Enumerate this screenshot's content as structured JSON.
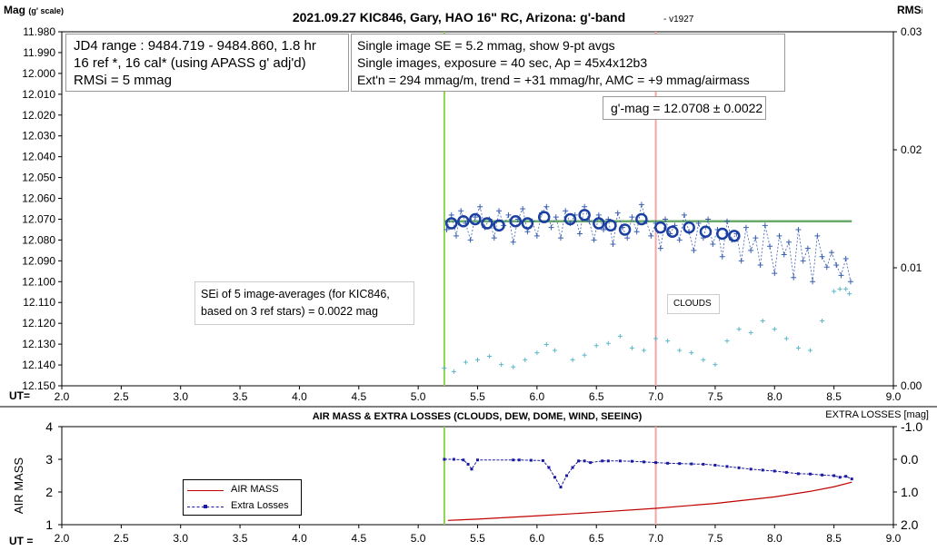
{
  "chart_data": [
    {
      "type": "scatter",
      "title": "2021.09.27 KIC846, Gary, HAO 16\" RC, Arizona: g'-band",
      "version": "- v1927",
      "ylabel": "Mag",
      "ylabel_scale": "(g' scale)",
      "y2label": "RMS",
      "y2label_sub": "i",
      "xlabel": "UT=",
      "xlim": [
        2.0,
        9.0
      ],
      "ylim": [
        11.98,
        12.15
      ],
      "y2lim": [
        0.0,
        0.03
      ],
      "x_ticks": [
        "2.0",
        "2.5",
        "3.0",
        "3.5",
        "4.0",
        "4.5",
        "5.0",
        "5.5",
        "6.0",
        "6.5",
        "7.0",
        "7.5",
        "8.0",
        "8.5",
        "9.0"
      ],
      "y_ticks": [
        "11.980",
        "11.990",
        "12.000",
        "12.010",
        "12.020",
        "12.030",
        "12.040",
        "12.050",
        "12.060",
        "12.070",
        "12.080",
        "12.090",
        "12.100",
        "12.110",
        "12.120",
        "12.130",
        "12.140",
        "12.150"
      ],
      "y2_ticks": [
        "0.03",
        "0.02",
        "0.01",
        "0.00"
      ],
      "vlines": [
        {
          "x": 5.22,
          "color": "#8fd14f"
        },
        {
          "x": 7.0,
          "color": "#f4a6a6"
        }
      ],
      "fit_line": {
        "x": [
          5.22,
          8.65
        ],
        "y": [
          12.071,
          12.071
        ],
        "color": "#6aaa6a"
      },
      "series": [
        {
          "name": "9-pt avgs",
          "style": "circle",
          "color": "#1a3fa0",
          "x": [
            5.28,
            5.38,
            5.48,
            5.58,
            5.68,
            5.82,
            5.92,
            6.06,
            6.28,
            6.4,
            6.52,
            6.62,
            6.74,
            6.88,
            7.04,
            7.14,
            7.28,
            7.42,
            7.56,
            7.66
          ],
          "y": [
            12.072,
            12.071,
            12.07,
            12.072,
            12.073,
            12.071,
            12.072,
            12.069,
            12.07,
            12.068,
            12.072,
            12.073,
            12.075,
            12.07,
            12.074,
            12.076,
            12.074,
            12.076,
            12.077,
            12.078
          ]
        },
        {
          "name": "RMSi (right axis)",
          "style": "small-cross",
          "color": "#5ab8c8",
          "x": [
            5.22,
            5.3,
            5.4,
            5.5,
            5.6,
            5.7,
            5.8,
            5.9,
            6.0,
            6.08,
            6.15,
            6.3,
            6.4,
            6.5,
            6.6,
            6.7,
            6.8,
            6.9,
            7.0,
            7.1,
            7.2,
            7.3,
            7.4,
            7.5,
            7.6,
            7.7,
            7.8,
            7.9,
            8.0,
            8.1,
            8.2,
            8.3,
            8.4,
            8.5,
            8.55,
            8.6,
            8.63
          ],
          "y": [
            0.0015,
            0.0012,
            0.002,
            0.0022,
            0.0025,
            0.0018,
            0.0016,
            0.0022,
            0.0028,
            0.0035,
            0.003,
            0.0022,
            0.0026,
            0.0034,
            0.0036,
            0.0042,
            0.0032,
            0.003,
            0.004,
            0.0038,
            0.003,
            0.0028,
            0.0022,
            0.0018,
            0.0038,
            0.0048,
            0.0045,
            0.0055,
            0.0048,
            0.004,
            0.0032,
            0.003,
            0.0055,
            0.008,
            0.0082,
            0.0082,
            0.0078
          ]
        },
        {
          "name": "Single images",
          "style": "cross-dotted",
          "color": "#3a5fb0",
          "x": [
            5.24,
            5.28,
            5.32,
            5.36,
            5.4,
            5.44,
            5.48,
            5.52,
            5.56,
            5.6,
            5.64,
            5.68,
            5.72,
            5.76,
            5.8,
            5.84,
            5.88,
            5.92,
            5.96,
            6.0,
            6.04,
            6.08,
            6.12,
            6.16,
            6.2,
            6.24,
            6.28,
            6.32,
            6.36,
            6.4,
            6.44,
            6.48,
            6.52,
            6.56,
            6.6,
            6.64,
            6.68,
            6.72,
            6.76,
            6.8,
            6.84,
            6.88,
            6.92,
            6.96,
            7.0,
            7.04,
            7.08,
            7.12,
            7.16,
            7.2,
            7.24,
            7.28,
            7.32,
            7.36,
            7.4,
            7.44,
            7.48,
            7.52,
            7.56,
            7.6,
            7.64,
            7.68,
            7.72,
            7.76,
            7.8,
            7.84,
            7.88,
            7.92,
            7.96,
            8.0,
            8.04,
            8.08,
            8.12,
            8.16,
            8.2,
            8.24,
            8.28,
            8.32,
            8.36,
            8.4,
            8.44,
            8.48,
            8.52,
            8.56,
            8.6,
            8.64
          ],
          "y": [
            12.075,
            12.068,
            12.078,
            12.066,
            12.072,
            12.08,
            12.069,
            12.064,
            12.074,
            12.07,
            12.079,
            12.066,
            12.073,
            12.068,
            12.081,
            12.07,
            12.065,
            12.076,
            12.071,
            12.078,
            12.067,
            12.064,
            12.074,
            12.069,
            12.079,
            12.066,
            12.072,
            12.068,
            12.077,
            12.064,
            12.071,
            12.08,
            12.068,
            12.075,
            12.07,
            12.082,
            12.067,
            12.074,
            12.079,
            12.069,
            12.076,
            12.063,
            12.071,
            12.078,
            12.072,
            12.084,
            12.07,
            12.077,
            12.073,
            12.08,
            12.068,
            12.076,
            12.085,
            12.072,
            12.079,
            12.07,
            12.082,
            12.075,
            12.088,
            12.071,
            12.08,
            12.077,
            12.09,
            12.074,
            12.085,
            12.079,
            12.092,
            12.073,
            12.083,
            12.096,
            12.078,
            12.087,
            12.081,
            12.098,
            12.075,
            12.09,
            12.084,
            12.1,
            12.078,
            12.088,
            12.093,
            12.086,
            12.092,
            12.097,
            12.089,
            12.1
          ]
        }
      ]
    },
    {
      "type": "line",
      "title": "AIR MASS & EXTRA LOSSES (CLOUDS, DEW, DOME, WIND, SEEING)",
      "ylabel": "AIR MASS",
      "y2label": "EXTRA LOSSES [mag]",
      "xlabel": "UT =",
      "xlim": [
        2.0,
        9.0
      ],
      "ylim": [
        1,
        4
      ],
      "y2lim": [
        2.0,
        -1.0
      ],
      "x_ticks": [
        "2.0",
        "2.5",
        "3.0",
        "3.5",
        "4.0",
        "4.5",
        "5.0",
        "5.5",
        "6.0",
        "6.5",
        "7.0",
        "7.5",
        "8.0",
        "8.5",
        "9.0"
      ],
      "y_ticks": [
        "1",
        "2",
        "3",
        "4"
      ],
      "y2_ticks": [
        "2.0",
        "1.0",
        "0.0",
        "-1.0"
      ],
      "vlines": [
        {
          "x": 5.22,
          "color": "#8fd14f"
        },
        {
          "x": 7.0,
          "color": "#f4a6a6"
        }
      ],
      "series": [
        {
          "name": "AIR MASS",
          "color": "#c00000",
          "axis": "left",
          "x": [
            5.25,
            5.5,
            6.0,
            6.5,
            7.0,
            7.5,
            8.0,
            8.3,
            8.5,
            8.65
          ],
          "y": [
            1.13,
            1.17,
            1.27,
            1.38,
            1.5,
            1.65,
            1.85,
            2.02,
            2.16,
            2.3
          ]
        },
        {
          "name": "Extra Losses",
          "color": "#1a1aa0",
          "axis": "right",
          "x": [
            5.22,
            5.3,
            5.38,
            5.42,
            5.45,
            5.5,
            5.8,
            5.85,
            5.95,
            6.05,
            6.1,
            6.15,
            6.2,
            6.25,
            6.3,
            6.35,
            6.4,
            6.45,
            6.55,
            6.6,
            6.7,
            6.8,
            6.9,
            7.0,
            7.1,
            7.2,
            7.3,
            7.4,
            7.5,
            7.6,
            7.7,
            7.8,
            7.9,
            8.0,
            8.1,
            8.2,
            8.3,
            8.4,
            8.5,
            8.55,
            8.6,
            8.65
          ],
          "y": [
            0.0,
            0.0,
            0.02,
            0.15,
            0.3,
            0.02,
            0.02,
            0.02,
            0.03,
            0.04,
            0.25,
            0.55,
            0.85,
            0.5,
            0.25,
            0.05,
            0.05,
            0.1,
            0.05,
            0.05,
            0.05,
            0.06,
            0.08,
            0.1,
            0.12,
            0.13,
            0.14,
            0.15,
            0.18,
            0.22,
            0.26,
            0.3,
            0.33,
            0.36,
            0.4,
            0.44,
            0.45,
            0.48,
            0.5,
            0.55,
            0.52,
            0.6
          ]
        }
      ]
    }
  ],
  "info_box_1": {
    "line1": "JD4 range : 9484.719 - 9484.860,  1.8  hr",
    "line2": "16 ref *, 16 cal* (using APASS g' adj'd)",
    "line3": "RMSi = 5 mmag"
  },
  "info_box_2": {
    "line1": "Single image SE = 5.2 mmag, show  9-pt avgs",
    "line2": "Single images, exposure = 40 sec, Ap = 45x4x12b3",
    "line3": "Ext'n = 294 mmag/m, trend = +31 mmag/hr, AMC = +9 mmag/airmass"
  },
  "mag_box": {
    "text": "g'-mag = 12.0708 ± 0.0022"
  },
  "sei_box": {
    "line1": "SEi of 5 image-averages (for KIC846,",
    "line2": "based on 3 ref stars) = 0.0022 mag"
  },
  "clouds_box": {
    "text": "CLOUDS"
  },
  "legend": {
    "airmass": "AIR MASS",
    "losses": "Extra Losses"
  }
}
